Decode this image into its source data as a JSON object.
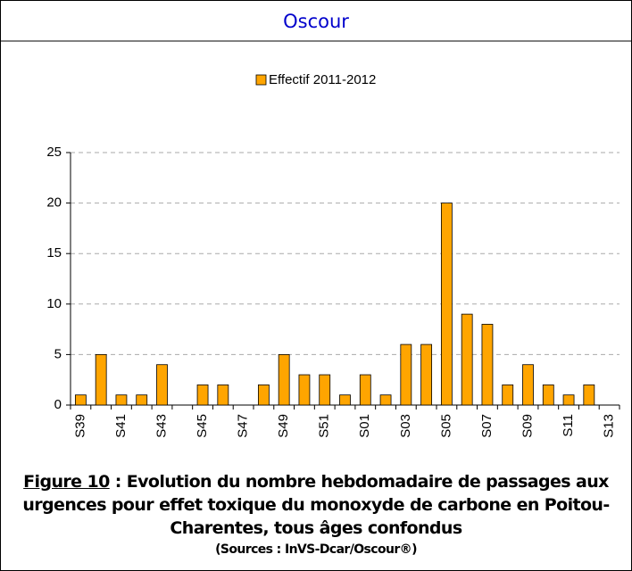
{
  "header": {
    "title": "Oscour"
  },
  "chart_data": {
    "type": "bar",
    "categories": [
      "S39",
      null,
      "S41",
      null,
      "S43",
      null,
      "S45",
      null,
      "S47",
      null,
      "S49",
      null,
      "S51",
      null,
      "S01",
      null,
      "S03",
      null,
      "S05",
      null,
      "S07",
      null,
      "S09",
      null,
      "S11",
      null,
      "S13"
    ],
    "series": [
      {
        "name": "Effectif 2011-2012",
        "color": "#ffa500",
        "values": [
          1,
          5,
          1,
          1,
          4,
          0,
          2,
          2,
          0,
          2,
          5,
          3,
          3,
          1,
          3,
          1,
          6,
          6,
          20,
          9,
          8,
          2,
          4,
          2,
          1,
          2,
          0
        ]
      }
    ],
    "ylim": [
      0,
      25
    ],
    "yticks": [
      0,
      5,
      10,
      15,
      20,
      25
    ],
    "grid": true,
    "legend": "top"
  },
  "caption": {
    "figure_label": "Figure 10",
    "text": " : Evolution du nombre hebdomadaire de passages aux urgences pour effet toxique du monoxyde de carbone en Poitou-Charentes, tous âges confondus",
    "source": "(Sources : InVS-Dcar/Oscour®)"
  }
}
